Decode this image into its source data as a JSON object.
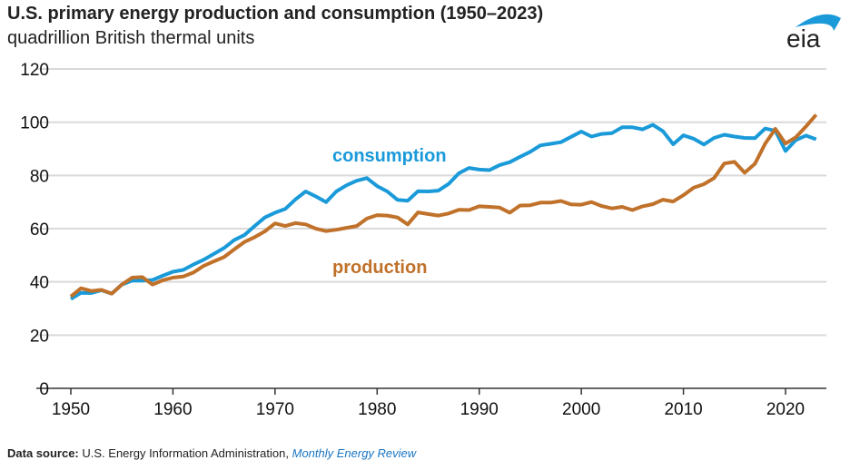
{
  "header": {
    "title": "U.S. primary energy production and consumption (1950–2023)",
    "subtitle": "quadrillion British thermal units",
    "logo_text": "eia"
  },
  "footer": {
    "source_label": "Data source:",
    "source_text": "U.S. Energy Information Administration,",
    "source_link": "Monthly Energy Review"
  },
  "colors": {
    "consumption": "#1a9ad9",
    "production": "#c0712a",
    "grid": "#d9d9d9",
    "axis": "#333333"
  },
  "chart_data": {
    "type": "line",
    "title": "U.S. primary energy production and consumption (1950–2023)",
    "ylabel": "quadrillion British thermal units",
    "xlabel": "",
    "xlim": [
      1950,
      2023
    ],
    "ylim": [
      0,
      120
    ],
    "x_ticks": [
      1950,
      1960,
      1970,
      1980,
      1990,
      2000,
      2010,
      2020
    ],
    "y_ticks": [
      0,
      20,
      40,
      60,
      80,
      100,
      120
    ],
    "grid": "horizontal",
    "x_start": 1950,
    "series": [
      {
        "name": "consumption",
        "label_position": "above line near 1980",
        "values": [
          33.6,
          35.9,
          35.8,
          36.9,
          35.6,
          39.0,
          40.5,
          40.5,
          40.7,
          42.3,
          43.8,
          44.5,
          46.5,
          48.3,
          50.5,
          52.7,
          55.7,
          57.6,
          61.0,
          64.2,
          66.0,
          67.4,
          71.0,
          74.0,
          72.1,
          70.0,
          74.0,
          76.3,
          78.0,
          79.0,
          76.0,
          74.0,
          70.8,
          70.5,
          74.1,
          74.0,
          74.3,
          76.8,
          80.8,
          82.8,
          82.2,
          82.0,
          83.9,
          85.0,
          87.0,
          88.9,
          91.3,
          91.9,
          92.5,
          94.5,
          96.5,
          94.6,
          95.6,
          95.9,
          98.1,
          98.1,
          97.3,
          99.0,
          96.6,
          91.7,
          95.1,
          93.8,
          91.6,
          94.1,
          95.3,
          94.6,
          94.1,
          94.0,
          97.6,
          96.8,
          89.2,
          93.3,
          95.0,
          93.6
        ]
      },
      {
        "name": "production",
        "label_position": "below line near 1980",
        "values": [
          34.5,
          37.6,
          36.6,
          37.0,
          35.6,
          39.0,
          41.6,
          41.8,
          39.0,
          40.6,
          41.6,
          42.0,
          43.5,
          46.0,
          47.7,
          49.3,
          52.2,
          55.0,
          56.8,
          59.0,
          62.0,
          61.0,
          62.1,
          61.6,
          60.0,
          59.1,
          59.6,
          60.3,
          61.0,
          63.8,
          65.1,
          64.9,
          64.2,
          61.6,
          66.1,
          65.5,
          64.9,
          65.7,
          67.1,
          67.0,
          68.4,
          68.2,
          67.9,
          66.0,
          68.7,
          68.8,
          69.8,
          69.8,
          70.4,
          69.1,
          69.0,
          70.0,
          68.5,
          67.6,
          68.2,
          67.0,
          68.4,
          69.2,
          70.9,
          70.2,
          72.6,
          75.4,
          76.7,
          79.0,
          84.5,
          85.1,
          81.0,
          84.4,
          91.9,
          97.5,
          92.0,
          94.3,
          98.4,
          102.8
        ]
      }
    ]
  }
}
